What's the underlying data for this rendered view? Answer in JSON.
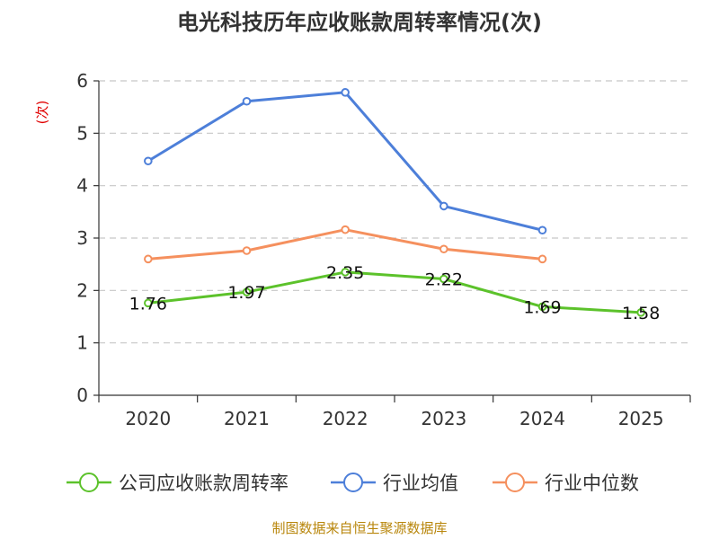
{
  "chart_data": {
    "type": "line",
    "title": "电光科技历年应收账款周转率情况(次)",
    "xlabel": "",
    "ylabel": "(次)",
    "categories": [
      "2020",
      "2021",
      "2022",
      "2023",
      "2024",
      "2025"
    ],
    "ylim": [
      0,
      6
    ],
    "yticks": [
      0,
      1,
      2,
      3,
      4,
      5,
      6
    ],
    "grid": true,
    "legend_position": "bottom",
    "series": [
      {
        "name": "公司应收账款周转率",
        "color": "#5cc22b",
        "values": [
          1.76,
          1.97,
          2.35,
          2.22,
          1.69,
          1.58
        ],
        "labels": [
          "1.76",
          "1.97",
          "2.35",
          "2.22",
          "1.69",
          "1.58"
        ]
      },
      {
        "name": "行业均值",
        "color": "#4d7fd9",
        "values": [
          4.47,
          5.61,
          5.78,
          3.61,
          3.15,
          null
        ]
      },
      {
        "name": "行业中位数",
        "color": "#f5905e",
        "values": [
          2.6,
          2.76,
          3.16,
          2.79,
          2.6,
          null
        ]
      }
    ],
    "source": "制图数据来自恒生聚源数据库"
  }
}
